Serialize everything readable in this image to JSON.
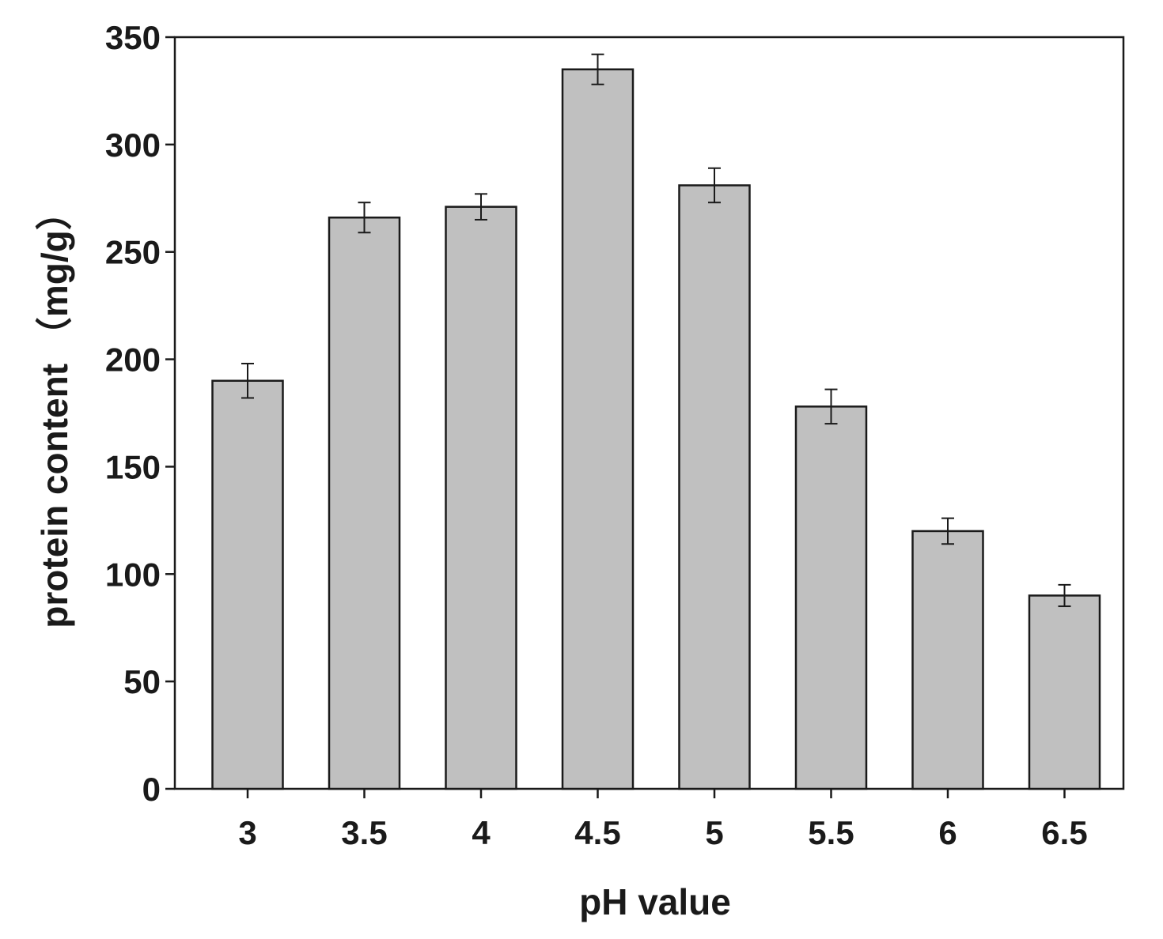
{
  "chart_data": {
    "type": "bar",
    "title": "",
    "xlabel": "pH value",
    "ylabel": "protein content （mg/g）",
    "categories": [
      "3",
      "3.5",
      "4",
      "4.5",
      "5",
      "5.5",
      "6",
      "6.5"
    ],
    "values": [
      190,
      266,
      271,
      335,
      281,
      178,
      120,
      90
    ],
    "error": [
      8,
      7,
      6,
      7,
      8,
      8,
      6,
      5
    ],
    "ylim": [
      0,
      350
    ],
    "yticks": [
      0,
      50,
      100,
      150,
      200,
      250,
      300,
      350
    ],
    "bar_color": "#c0c0c0",
    "bar_edge_color": "#1a1a1a",
    "grid": false,
    "legend": "none"
  }
}
